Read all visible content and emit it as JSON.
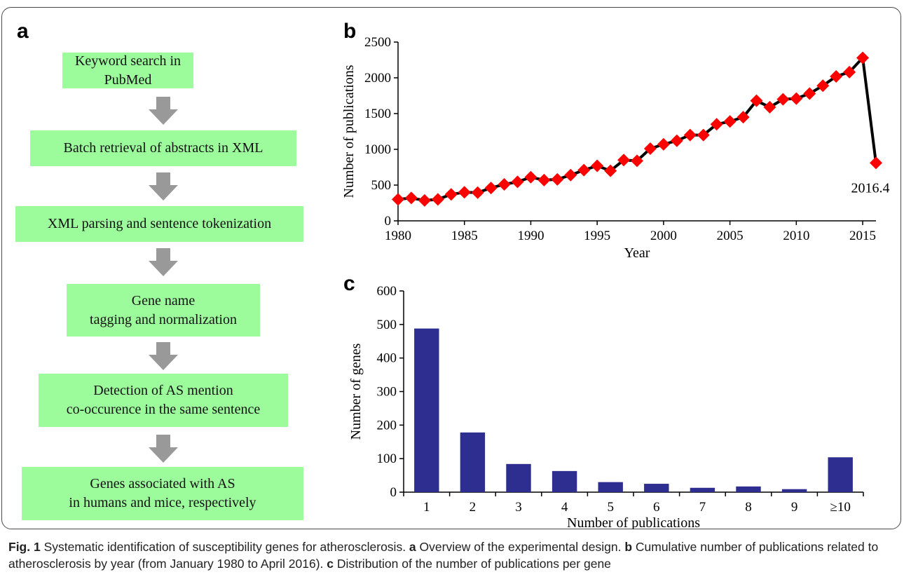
{
  "panels": {
    "a": "a",
    "b": "b",
    "c": "c"
  },
  "flowchart": {
    "steps": [
      "Keyword search in PubMed",
      "Batch retrieval of abstracts in XML",
      "XML parsing and sentence tokenization",
      "Gene name\ntagging and normalization",
      "Detection of AS mention\nco-occurence in the same sentence",
      "Genes associated with AS\nin humans and mice, respectively"
    ],
    "box_color": "#9cfc9c",
    "arrow_color": "#999999"
  },
  "chart_data": [
    {
      "type": "line",
      "xlabel": "Year",
      "ylabel": "Number of publications",
      "xlim": [
        1980,
        2016
      ],
      "ylim": [
        0,
        2500
      ],
      "xticks": [
        1980,
        1985,
        1990,
        1995,
        2000,
        2005,
        2010,
        2015
      ],
      "yticks": [
        0,
        500,
        1000,
        1500,
        2000,
        2500
      ],
      "annotation": "2016.4",
      "line_color": "#000000",
      "marker_color": "#ff0000",
      "grid": false,
      "x": [
        1980,
        1981,
        1982,
        1983,
        1984,
        1985,
        1986,
        1987,
        1988,
        1989,
        1990,
        1991,
        1992,
        1993,
        1994,
        1995,
        1996,
        1997,
        1998,
        1999,
        2000,
        2001,
        2002,
        2003,
        2004,
        2005,
        2006,
        2007,
        2008,
        2009,
        2010,
        2011,
        2012,
        2013,
        2014,
        2015,
        2016
      ],
      "values": [
        300,
        320,
        285,
        300,
        370,
        400,
        395,
        460,
        510,
        545,
        610,
        570,
        580,
        640,
        710,
        770,
        700,
        850,
        840,
        1010,
        1070,
        1120,
        1200,
        1200,
        1350,
        1390,
        1450,
        1680,
        1590,
        1700,
        1710,
        1780,
        1890,
        2020,
        2080,
        2280,
        810
      ]
    },
    {
      "type": "bar",
      "xlabel": "Number of publications",
      "ylabel": "Number of genes",
      "ylim": [
        0,
        600
      ],
      "yticks": [
        0,
        100,
        200,
        300,
        400,
        500,
        600
      ],
      "categories": [
        "1",
        "2",
        "3",
        "4",
        "5",
        "6",
        "7",
        "8",
        "9",
        "≥10"
      ],
      "values": [
        488,
        178,
        84,
        63,
        30,
        25,
        13,
        17,
        9,
        104
      ],
      "bar_color": "#2e2e91",
      "grid": false
    }
  ],
  "caption": {
    "fig_label": "Fig. 1",
    "title": " Systematic identification of susceptibility genes for atherosclerosis. ",
    "a_label": "a",
    "a_text": " Overview of the experimental design. ",
    "b_label": "b",
    "b_text": " Cumulative number of publications related to atherosclerosis by year (from January 1980 to April 2016). ",
    "c_label": "c",
    "c_text": " Distribution of the number of publications per gene"
  }
}
